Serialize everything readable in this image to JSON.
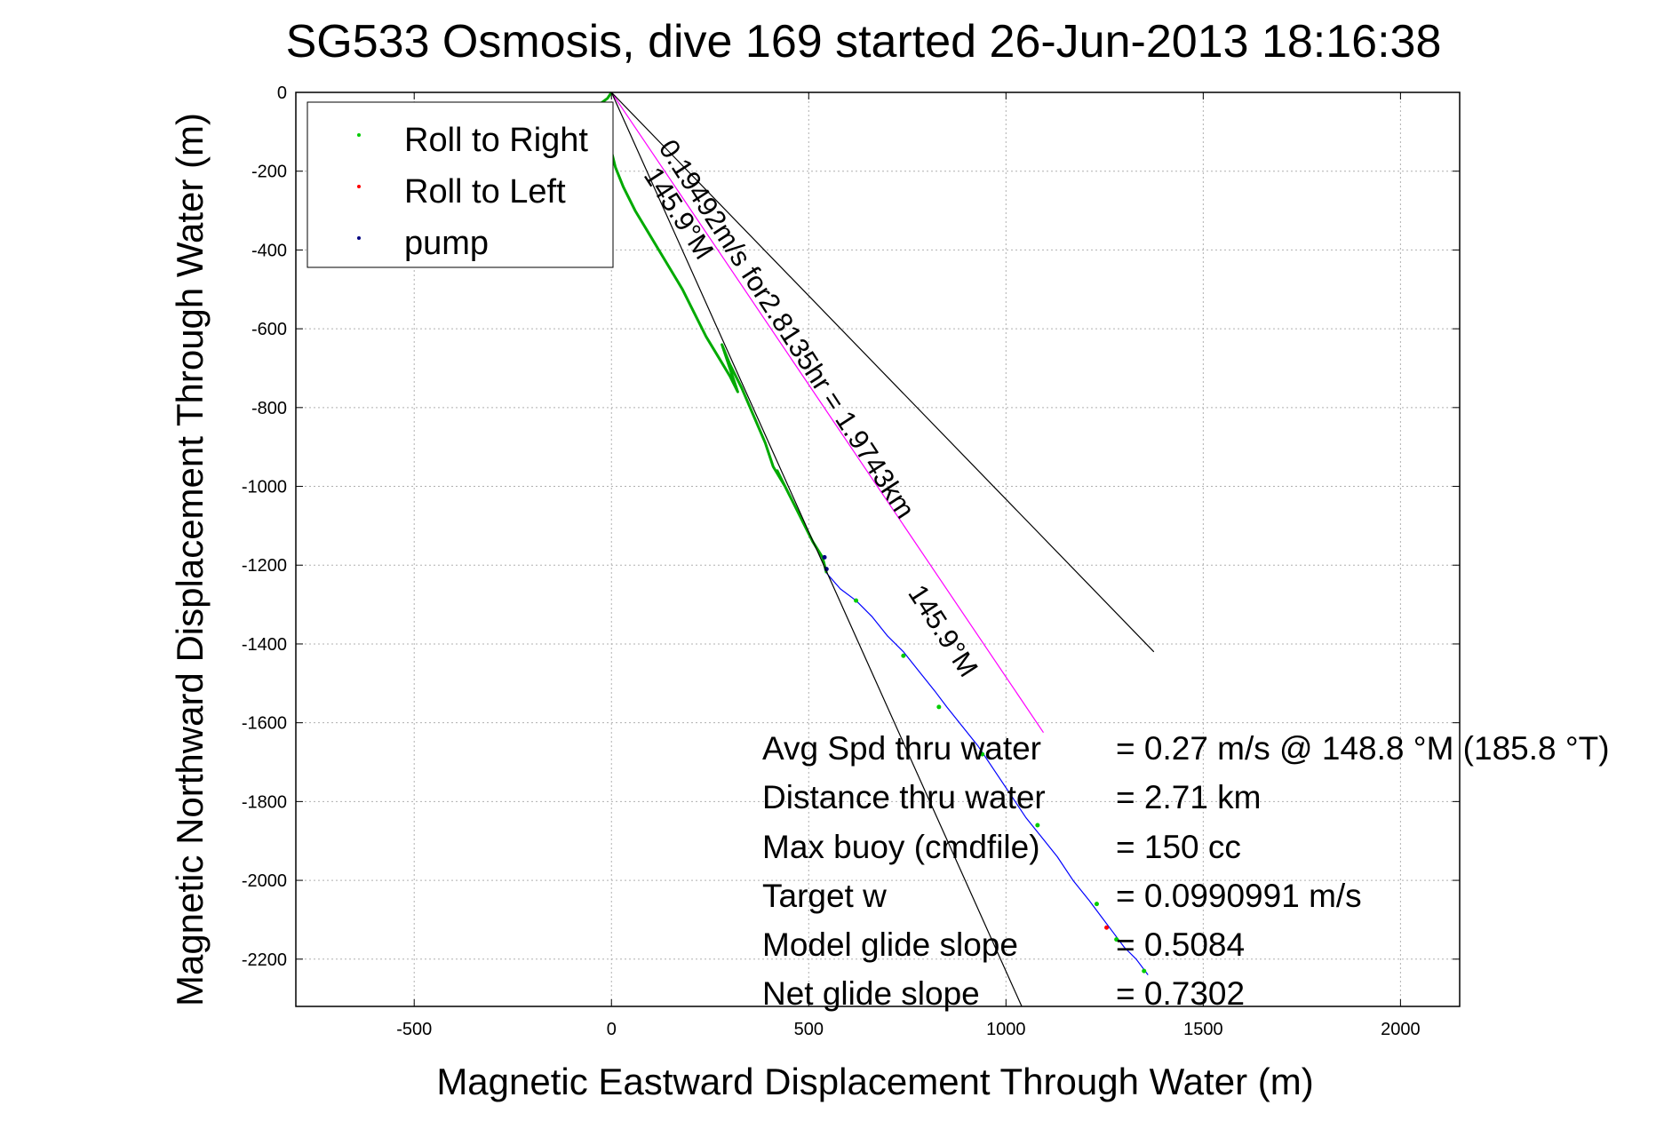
{
  "chart_data": {
    "type": "line",
    "title": "SG533 Osmosis, dive 169 started 26-Jun-2013 18:16:38",
    "xlabel": "Magnetic Eastward Displacement Through Water (m)",
    "ylabel": "Magnetic Northward Displacement Through Water (m)",
    "xlim": [
      -800,
      2150
    ],
    "ylim": [
      -2320,
      0
    ],
    "xticks": [
      -500,
      0,
      500,
      1000,
      1500,
      2000
    ],
    "yticks": [
      0,
      -200,
      -400,
      -600,
      -800,
      -1000,
      -1200,
      -1400,
      -1600,
      -1800,
      -2000,
      -2200
    ],
    "grid": true,
    "legend_position": "top-left",
    "legend": [
      {
        "label": "Roll to Right",
        "color": "#00cc00"
      },
      {
        "label": "Roll to Left",
        "color": "#ff0000"
      },
      {
        "label": "pump",
        "color": "#000080"
      }
    ],
    "series": [
      {
        "name": "dive track",
        "color": "#00aa00",
        "x": [
          0,
          -10,
          -30,
          -15,
          0,
          10,
          30,
          60,
          90,
          120,
          150,
          180,
          210,
          240,
          270,
          300,
          320,
          280,
          300,
          330,
          360,
          390,
          410,
          440,
          420,
          450,
          480,
          510,
          535,
          545
        ],
        "y": [
          0,
          -15,
          -30,
          -100,
          -150,
          -190,
          -240,
          -300,
          -350,
          -400,
          -450,
          -500,
          -560,
          -620,
          -670,
          -720,
          -760,
          -640,
          -690,
          -750,
          -820,
          -890,
          -950,
          -1000,
          -960,
          -1020,
          -1080,
          -1140,
          -1180,
          -1220
        ]
      },
      {
        "name": "climb track",
        "color": "#0000ff",
        "x": [
          545,
          580,
          620,
          660,
          700,
          740,
          780,
          820,
          850,
          890,
          930,
          970,
          1010,
          1050,
          1090,
          1130,
          1170,
          1210,
          1240,
          1270,
          1300,
          1330,
          1360
        ],
        "y": [
          -1220,
          -1260,
          -1290,
          -1330,
          -1380,
          -1420,
          -1470,
          -1520,
          -1560,
          -1610,
          -1660,
          -1720,
          -1780,
          -1840,
          -1890,
          -1940,
          -2000,
          -2050,
          -2090,
          -2130,
          -2170,
          -2200,
          -2240
        ]
      },
      {
        "name": "roll to right markers",
        "color": "#00cc00",
        "marker_only": true,
        "x": [
          620,
          740,
          830,
          940,
          1080,
          1230,
          1280,
          1350
        ],
        "y": [
          -1290,
          -1430,
          -1560,
          -1680,
          -1860,
          -2060,
          -2150,
          -2230
        ]
      },
      {
        "name": "roll to left markers",
        "color": "#ff0000",
        "marker_only": true,
        "x": [
          1255
        ],
        "y": [
          -2120
        ]
      },
      {
        "name": "pump markers",
        "color": "#000080",
        "marker_only": true,
        "x": [
          540,
          545
        ],
        "y": [
          -1180,
          -1210
        ]
      },
      {
        "name": "heading line",
        "color": "#ff00ff",
        "x": [
          0,
          1095
        ],
        "y": [
          0,
          -1625
        ]
      },
      {
        "name": "guide line upper",
        "color": "#000000",
        "x": [
          0,
          1375
        ],
        "y": [
          0,
          -1420
        ]
      },
      {
        "name": "guide line lower",
        "color": "#000000",
        "x": [
          0,
          1040
        ],
        "y": [
          0,
          -2320
        ]
      }
    ],
    "annotations": [
      {
        "text": "0.19492m/s for2.8135hr = 1.9743km",
        "x": 118,
        "y": -140,
        "angle": 57
      },
      {
        "text": "145.9°M",
        "x": 80,
        "y": -210,
        "angle": 57
      },
      {
        "text": "145.9°M",
        "x": 750,
        "y": -1270,
        "angle": 57
      }
    ],
    "stats": [
      {
        "label": "Avg Spd thru water",
        "value": "=  0.27 m/s @ 148.8  °M (185.8  °T)"
      },
      {
        "label": "Distance thru water",
        "value": "=  2.71 km"
      },
      {
        "label": "Max buoy (cmdfile)",
        "value": "= 150 cc"
      },
      {
        "label": "Target w",
        "value": "= 0.0990991 m/s"
      },
      {
        "label": "Model glide slope",
        "value": "= 0.5084"
      },
      {
        "label": "Net glide slope",
        "value": "= 0.7302"
      }
    ]
  }
}
